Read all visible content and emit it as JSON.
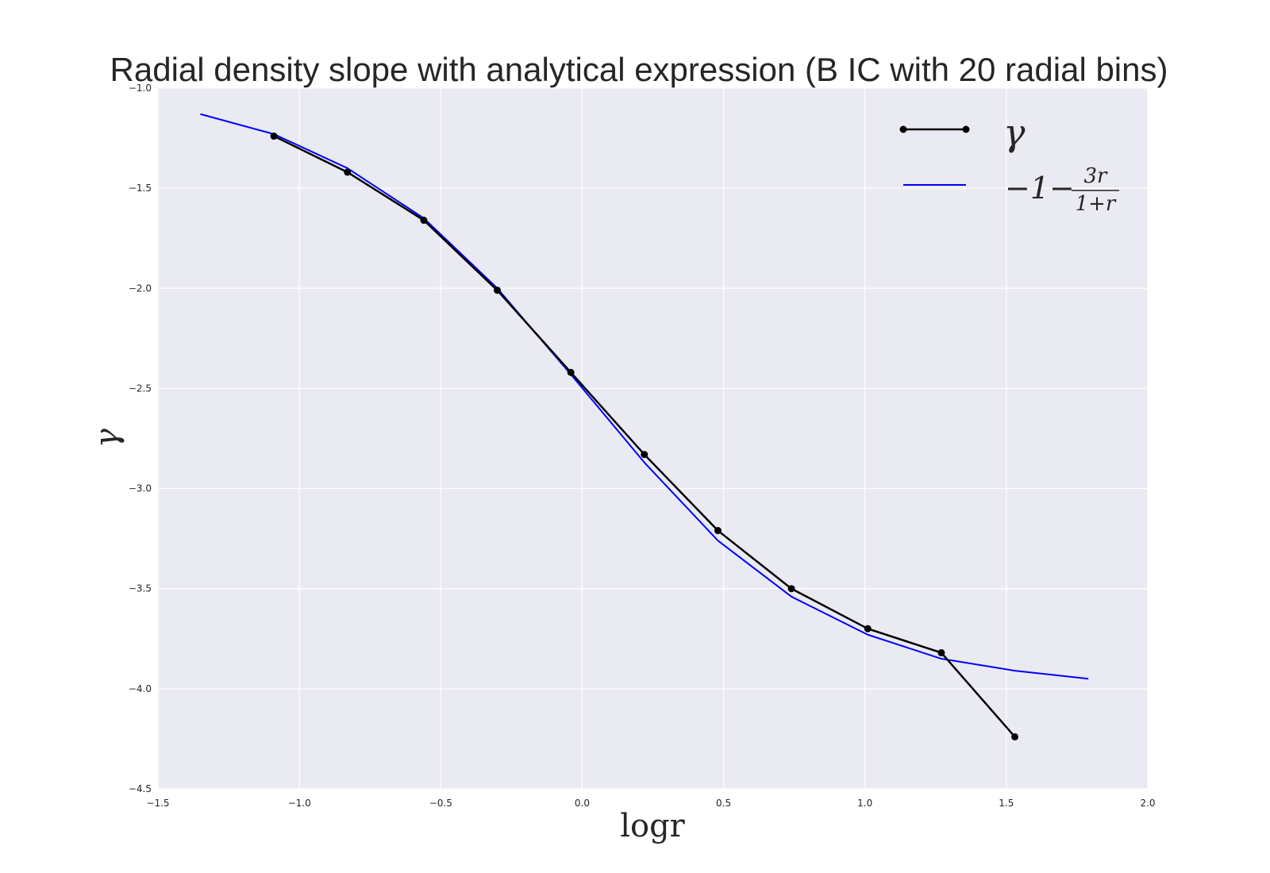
{
  "chart_data": {
    "type": "line",
    "title": "Radial density slope with analytical expression (B IC with 20 radial bins)",
    "xlabel": "logr",
    "ylabel": "γ",
    "xlim": [
      -1.5,
      2.0
    ],
    "ylim": [
      -4.5,
      -1.0
    ],
    "xticks": [
      -1.5,
      -1.0,
      -0.5,
      0.0,
      0.5,
      1.0,
      1.5,
      2.0
    ],
    "xtick_labels": [
      "−1.5",
      "−1.0",
      "−0.5",
      "0.0",
      "0.5",
      "1.0",
      "1.5",
      "2.0"
    ],
    "yticks": [
      -1.0,
      -1.5,
      -2.0,
      -2.5,
      -3.0,
      -3.5,
      -4.0,
      -4.5
    ],
    "ytick_labels": [
      "−1.0",
      "−1.5",
      "−2.0",
      "−2.5",
      "−3.0",
      "−3.5",
      "−4.0",
      "−4.5"
    ],
    "grid": true,
    "legend_position": "top-right",
    "series": [
      {
        "name": "γ",
        "color": "#000000",
        "markers": true,
        "x": [
          -1.09,
          -0.83,
          -0.56,
          -0.3,
          -0.04,
          0.22,
          0.48,
          0.74,
          1.01,
          1.27,
          1.53
        ],
        "y": [
          -1.24,
          -1.42,
          -1.66,
          -2.01,
          -2.42,
          -2.83,
          -3.21,
          -3.5,
          -3.7,
          -3.82,
          -4.24
        ]
      },
      {
        "name": "−1−3r/(1+r)",
        "color": "#0000ff",
        "markers": false,
        "x": [
          -1.35,
          -1.09,
          -0.83,
          -0.56,
          -0.3,
          -0.04,
          0.22,
          0.48,
          0.74,
          1.01,
          1.27,
          1.53,
          1.79
        ],
        "y": [
          -1.13,
          -1.23,
          -1.4,
          -1.65,
          -2.0,
          -2.43,
          -2.87,
          -3.26,
          -3.54,
          -3.73,
          -3.85,
          -3.91,
          -3.95
        ]
      }
    ],
    "legend": {
      "gamma": "γ",
      "fn_prefix": "−1−",
      "fn_num": "3r",
      "fn_den": "1+r"
    }
  },
  "colors": {
    "plot_background": "#eaeaf2",
    "grid": "#ffffff",
    "text": "#262626"
  }
}
